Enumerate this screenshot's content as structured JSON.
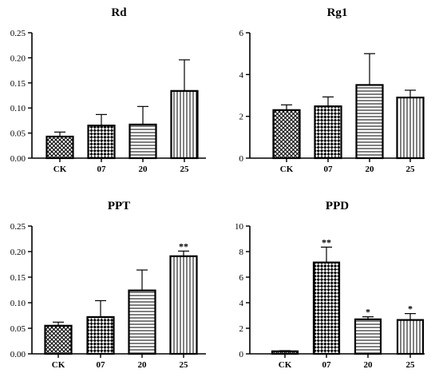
{
  "chart_data": [
    {
      "type": "bar",
      "title": "Rd",
      "categories": [
        "CK",
        "07",
        "20",
        "25"
      ],
      "values": [
        0.043,
        0.065,
        0.067,
        0.134
      ],
      "errors": [
        0.009,
        0.022,
        0.036,
        0.062
      ],
      "significance": [
        "",
        "",
        "",
        ""
      ],
      "patterns": [
        "crosshatch",
        "checker",
        "horizontal-lines",
        "vertical-lines"
      ],
      "ylim": [
        0,
        0.25
      ],
      "yticks": [
        "0.00",
        "0.05",
        "0.10",
        "0.15",
        "0.20",
        "0.25"
      ],
      "xlabel": "",
      "ylabel": ""
    },
    {
      "type": "bar",
      "title": "Rg1",
      "categories": [
        "CK",
        "07",
        "20",
        "25"
      ],
      "values": [
        2.3,
        2.48,
        3.5,
        2.9
      ],
      "errors": [
        0.25,
        0.45,
        1.5,
        0.35
      ],
      "significance": [
        "",
        "",
        "",
        ""
      ],
      "patterns": [
        "crosshatch",
        "checker",
        "horizontal-lines",
        "vertical-lines"
      ],
      "ylim": [
        0,
        6
      ],
      "yticks": [
        "0",
        "2",
        "4",
        "6"
      ],
      "xlabel": "",
      "ylabel": ""
    },
    {
      "type": "bar",
      "title": "PPT",
      "categories": [
        "CK",
        "07",
        "20",
        "25"
      ],
      "values": [
        0.055,
        0.072,
        0.124,
        0.191
      ],
      "errors": [
        0.007,
        0.032,
        0.04,
        0.01
      ],
      "significance": [
        "",
        "",
        "",
        "**"
      ],
      "patterns": [
        "crosshatch",
        "checker",
        "horizontal-lines",
        "vertical-lines"
      ],
      "ylim": [
        0,
        0.25
      ],
      "yticks": [
        "0.00",
        "0.05",
        "0.10",
        "0.15",
        "0.20",
        "0.25"
      ],
      "xlabel": "",
      "ylabel": ""
    },
    {
      "type": "bar",
      "title": "PPD",
      "categories": [
        "CK",
        "07",
        "20",
        "25"
      ],
      "values": [
        0.2,
        7.15,
        2.7,
        2.65
      ],
      "errors": [
        0.05,
        1.2,
        0.2,
        0.5
      ],
      "significance": [
        "",
        "**",
        "*",
        "*"
      ],
      "patterns": [
        "crosshatch",
        "checker",
        "horizontal-lines",
        "vertical-lines"
      ],
      "ylim": [
        0,
        10
      ],
      "yticks": [
        "0",
        "2",
        "4",
        "6",
        "8",
        "10"
      ],
      "xlabel": "",
      "ylabel": ""
    }
  ]
}
